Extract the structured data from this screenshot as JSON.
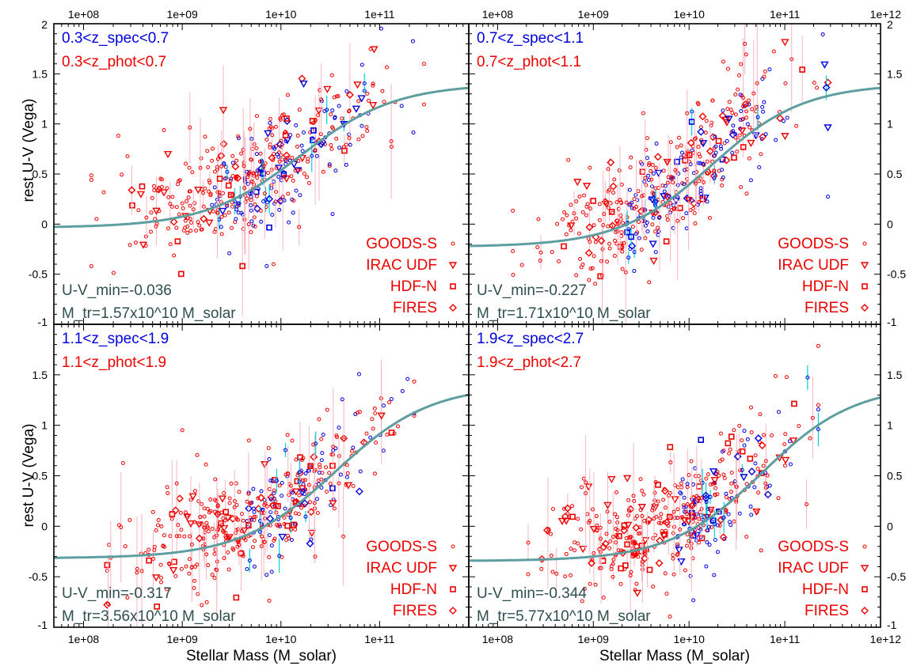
{
  "figure": {
    "ylabel": "rest U-V (Vega)",
    "xlabel": "Stellar Mass (M_solar)",
    "colors": {
      "spec": "#0000dd",
      "phot": "#ee0000",
      "errorbar_phot": "#f4b6c2",
      "errorbar_spec": "#00d0e0",
      "fit_curve": "#5f9ea0",
      "annotation": "#2f4f4f"
    }
  },
  "chart_data": [
    {
      "type": "scatter",
      "panel": "top-left",
      "label_spec": "0.3<z_spec<0.7",
      "label_phot": "0.3<z_phot<0.7",
      "uv_min_text": "U-V_min=-0.036",
      "mtr_text": "M_tr=1.57x10^10 M_solar",
      "uv_min": -0.036,
      "m_tr": 15700000000.0,
      "xlim": [
        50000000.0,
        800000000000.0
      ],
      "ylim": [
        -1,
        2
      ],
      "xscale": "log",
      "xtick_labels": [
        "1e+08",
        "1e+09",
        "1e+10",
        "1e+11"
      ],
      "ytick_labels": [
        "-1",
        "-0.5",
        "0",
        "0.5",
        "1",
        "1.5",
        "2"
      ],
      "legend": [
        "GOODS-S",
        "IRAC UDF",
        "HDF-N",
        "FIRES"
      ]
    },
    {
      "type": "scatter",
      "panel": "top-right",
      "label_spec": "0.7<z_spec<1.1",
      "label_phot": "0.7<z_phot<1.1",
      "uv_min_text": "U-V_min=-0.227",
      "mtr_text": "M_tr=1.71x10^10 M_solar",
      "uv_min": -0.227,
      "m_tr": 17100000000.0,
      "xlim": [
        50000000.0,
        1000000000000.0
      ],
      "ylim": [
        -1,
        2
      ],
      "xscale": "log",
      "xtick_labels": [
        "1e+08",
        "1e+09",
        "1e+10",
        "1e+11",
        "1e+12"
      ],
      "ytick_labels": [
        "-1",
        "-0.5",
        "0",
        "0.5",
        "1",
        "1.5",
        "2"
      ],
      "legend": [
        "GOODS-S",
        "IRAC UDF",
        "HDF-N",
        "FIRES"
      ]
    },
    {
      "type": "scatter",
      "panel": "bottom-left",
      "label_spec": "1.1<z_spec<1.9",
      "label_phot": "1.1<z_phot<1.9",
      "uv_min_text": "U-V_min=-0.317",
      "mtr_text": "M_tr=3.56x10^10 M_solar",
      "uv_min": -0.317,
      "m_tr": 35600000000.0,
      "xlim": [
        50000000.0,
        800000000000.0
      ],
      "ylim": [
        -1,
        2
      ],
      "xscale": "log",
      "xtick_labels": [
        "1e+08",
        "1e+09",
        "1e+10",
        "1e+11"
      ],
      "ytick_labels": [
        "-1",
        "-0.5",
        "0",
        "0.5",
        "1",
        "1.5",
        ""
      ],
      "legend": [
        "GOODS-S",
        "IRAC UDF",
        "HDF-N",
        "FIRES"
      ]
    },
    {
      "type": "scatter",
      "panel": "bottom-right",
      "label_spec": "1.9<z_spec<2.7",
      "label_phot": "1.9<z_phot<2.7",
      "uv_min_text": "U-V_min=-0.344",
      "mtr_text": "M_tr=5.77x10^10 M_solar",
      "uv_min": -0.344,
      "m_tr": 57700000000.0,
      "xlim": [
        50000000.0,
        1000000000000.0
      ],
      "ylim": [
        -1,
        2
      ],
      "xscale": "log",
      "xtick_labels": [
        "1e+08",
        "1e+09",
        "1e+10",
        "1e+11",
        "1e+12"
      ],
      "ytick_labels": [
        "-1",
        "-0.5",
        "0",
        "0.5",
        "1",
        "1.5",
        ""
      ],
      "legend": [
        "GOODS-S",
        "IRAC UDF",
        "HDF-N",
        "FIRES"
      ]
    }
  ]
}
